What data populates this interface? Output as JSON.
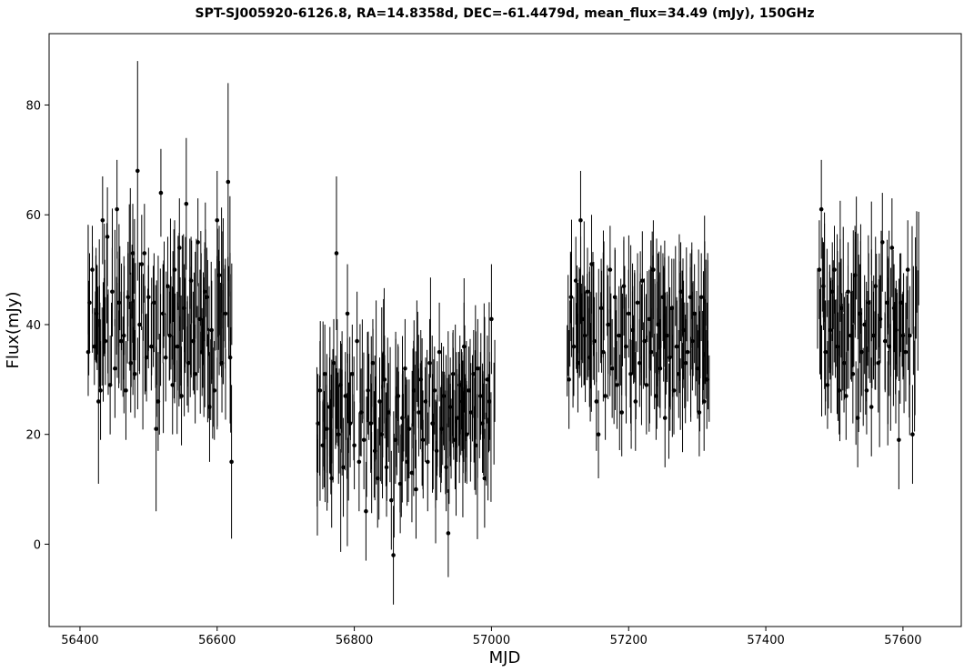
{
  "chart_data": {
    "type": "scatter",
    "title": "SPT-SJ005920-6126.8, RA=14.8358d, DEC=-61.4479d, mean_flux=34.49 (mJy), 150GHz",
    "xlabel": "MJD",
    "ylabel": "Flux(mJy)",
    "xlim": [
      56355,
      57685
    ],
    "ylim": [
      -15,
      93
    ],
    "xticks": [
      56400,
      56600,
      56800,
      57000,
      57200,
      57400,
      57600
    ],
    "yticks": [
      0,
      20,
      40,
      60,
      80
    ],
    "grid": false,
    "legend": "none",
    "errorbars": true,
    "point_color": "#000000",
    "season_ranges": [
      [
        56410,
        56625
      ],
      [
        56745,
        57005
      ],
      [
        57110,
        57320
      ],
      [
        57475,
        57625
      ]
    ],
    "season_means": [
      41,
      24,
      38,
      40
    ],
    "points": [
      {
        "x": 56412,
        "y": 35,
        "err": 8
      },
      {
        "x": 56414,
        "y": 44,
        "err": 9
      },
      {
        "x": 56418,
        "y": 50,
        "err": 8
      },
      {
        "x": 56421,
        "y": 36,
        "err": 7
      },
      {
        "x": 56424,
        "y": 42,
        "err": 9
      },
      {
        "x": 56427,
        "y": 26,
        "err": 15
      },
      {
        "x": 56430,
        "y": 28,
        "err": 9
      },
      {
        "x": 56433,
        "y": 59,
        "err": 8
      },
      {
        "x": 56437,
        "y": 37,
        "err": 8
      },
      {
        "x": 56440,
        "y": 56,
        "err": 9
      },
      {
        "x": 56444,
        "y": 29,
        "err": 9
      },
      {
        "x": 56447,
        "y": 46,
        "err": 8
      },
      {
        "x": 56451,
        "y": 32,
        "err": 9
      },
      {
        "x": 56454,
        "y": 61,
        "err": 9
      },
      {
        "x": 56457,
        "y": 44,
        "err": 8
      },
      {
        "x": 56460,
        "y": 37,
        "err": 9
      },
      {
        "x": 56464,
        "y": 38,
        "err": 8
      },
      {
        "x": 56467,
        "y": 28,
        "err": 9
      },
      {
        "x": 56470,
        "y": 45,
        "err": 8
      },
      {
        "x": 56474,
        "y": 33,
        "err": 9
      },
      {
        "x": 56477,
        "y": 53,
        "err": 9
      },
      {
        "x": 56480,
        "y": 31,
        "err": 8
      },
      {
        "x": 56484,
        "y": 68,
        "err": 20
      },
      {
        "x": 56487,
        "y": 40,
        "err": 9
      },
      {
        "x": 56490,
        "y": 51,
        "err": 9
      },
      {
        "x": 56494,
        "y": 53,
        "err": 9
      },
      {
        "x": 56497,
        "y": 34,
        "err": 8
      },
      {
        "x": 56500,
        "y": 45,
        "err": 9
      },
      {
        "x": 56504,
        "y": 36,
        "err": 8
      },
      {
        "x": 56508,
        "y": 44,
        "err": 9
      },
      {
        "x": 56511,
        "y": 21,
        "err": 15
      },
      {
        "x": 56514,
        "y": 26,
        "err": 9
      },
      {
        "x": 56518,
        "y": 64,
        "err": 8
      },
      {
        "x": 56521,
        "y": 42,
        "err": 9
      },
      {
        "x": 56525,
        "y": 34,
        "err": 8
      },
      {
        "x": 56528,
        "y": 47,
        "err": 9
      },
      {
        "x": 56531,
        "y": 38,
        "err": 8
      },
      {
        "x": 56535,
        "y": 29,
        "err": 9
      },
      {
        "x": 56538,
        "y": 50,
        "err": 9
      },
      {
        "x": 56542,
        "y": 36,
        "err": 8
      },
      {
        "x": 56545,
        "y": 54,
        "err": 9
      },
      {
        "x": 56548,
        "y": 27,
        "err": 9
      },
      {
        "x": 56552,
        "y": 43,
        "err": 8
      },
      {
        "x": 56555,
        "y": 62,
        "err": 12
      },
      {
        "x": 56558,
        "y": 33,
        "err": 9
      },
      {
        "x": 56562,
        "y": 48,
        "err": 8
      },
      {
        "x": 56565,
        "y": 37,
        "err": 9
      },
      {
        "x": 56568,
        "y": 31,
        "err": 9
      },
      {
        "x": 56572,
        "y": 55,
        "err": 8
      },
      {
        "x": 56575,
        "y": 41,
        "err": 9
      },
      {
        "x": 56578,
        "y": 35,
        "err": 8
      },
      {
        "x": 56582,
        "y": 46,
        "err": 9
      },
      {
        "x": 56585,
        "y": 45,
        "err": 9
      },
      {
        "x": 56589,
        "y": 25,
        "err": 10
      },
      {
        "x": 56592,
        "y": 39,
        "err": 9
      },
      {
        "x": 56596,
        "y": 28,
        "err": 9
      },
      {
        "x": 56600,
        "y": 59,
        "err": 9
      },
      {
        "x": 56603,
        "y": 49,
        "err": 9
      },
      {
        "x": 56607,
        "y": 33,
        "err": 9
      },
      {
        "x": 56612,
        "y": 42,
        "err": 10
      },
      {
        "x": 56616,
        "y": 66,
        "err": 18
      },
      {
        "x": 56619,
        "y": 34,
        "err": 12
      },
      {
        "x": 56621,
        "y": 15,
        "err": 14
      },
      {
        "x": 56747,
        "y": 22,
        "err": 9
      },
      {
        "x": 56750,
        "y": 28,
        "err": 9
      },
      {
        "x": 56754,
        "y": 18,
        "err": 8
      },
      {
        "x": 56757,
        "y": 31,
        "err": 9
      },
      {
        "x": 56760,
        "y": 21,
        "err": 8
      },
      {
        "x": 56764,
        "y": 25,
        "err": 9
      },
      {
        "x": 56767,
        "y": 12,
        "err": 9
      },
      {
        "x": 56770,
        "y": 33,
        "err": 8
      },
      {
        "x": 56774,
        "y": 53,
        "err": 14
      },
      {
        "x": 56777,
        "y": 20,
        "err": 9
      },
      {
        "x": 56780,
        "y": 29,
        "err": 8
      },
      {
        "x": 56784,
        "y": 14,
        "err": 9
      },
      {
        "x": 56787,
        "y": 27,
        "err": 8
      },
      {
        "x": 56790,
        "y": 42,
        "err": 9
      },
      {
        "x": 56794,
        "y": 22,
        "err": 8
      },
      {
        "x": 56797,
        "y": 31,
        "err": 9
      },
      {
        "x": 56800,
        "y": 18,
        "err": 8
      },
      {
        "x": 56804,
        "y": 37,
        "err": 9
      },
      {
        "x": 56807,
        "y": 15,
        "err": 9
      },
      {
        "x": 56810,
        "y": 24,
        "err": 8
      },
      {
        "x": 56814,
        "y": 19,
        "err": 9
      },
      {
        "x": 56817,
        "y": 6,
        "err": 9
      },
      {
        "x": 56820,
        "y": 28,
        "err": 8
      },
      {
        "x": 56824,
        "y": 22,
        "err": 9
      },
      {
        "x": 56827,
        "y": 33,
        "err": 8
      },
      {
        "x": 56830,
        "y": 17,
        "err": 9
      },
      {
        "x": 56834,
        "y": 12,
        "err": 9
      },
      {
        "x": 56837,
        "y": 26,
        "err": 8
      },
      {
        "x": 56840,
        "y": 20,
        "err": 9
      },
      {
        "x": 56844,
        "y": 30,
        "err": 8
      },
      {
        "x": 56847,
        "y": 14,
        "err": 9
      },
      {
        "x": 56850,
        "y": 24,
        "err": 9
      },
      {
        "x": 56854,
        "y": 8,
        "err": 9
      },
      {
        "x": 56857,
        "y": -2,
        "err": 9
      },
      {
        "x": 56860,
        "y": 19,
        "err": 8
      },
      {
        "x": 56864,
        "y": 27,
        "err": 9
      },
      {
        "x": 56867,
        "y": 11,
        "err": 9
      },
      {
        "x": 56870,
        "y": 23,
        "err": 8
      },
      {
        "x": 56874,
        "y": 32,
        "err": 9
      },
      {
        "x": 56877,
        "y": 15,
        "err": 8
      },
      {
        "x": 56880,
        "y": 21,
        "err": 9
      },
      {
        "x": 56884,
        "y": 13,
        "err": 9
      },
      {
        "x": 56887,
        "y": 28,
        "err": 8
      },
      {
        "x": 56890,
        "y": 10,
        "err": 9
      },
      {
        "x": 56894,
        "y": 24,
        "err": 8
      },
      {
        "x": 56897,
        "y": 30,
        "err": 9
      },
      {
        "x": 56900,
        "y": 19,
        "err": 9
      },
      {
        "x": 56904,
        "y": 26,
        "err": 8
      },
      {
        "x": 56907,
        "y": 15,
        "err": 9
      },
      {
        "x": 56910,
        "y": 33,
        "err": 8
      },
      {
        "x": 56914,
        "y": 22,
        "err": 9
      },
      {
        "x": 56917,
        "y": 28,
        "err": 8
      },
      {
        "x": 56920,
        "y": 17,
        "err": 9
      },
      {
        "x": 56924,
        "y": 35,
        "err": 9
      },
      {
        "x": 56927,
        "y": 21,
        "err": 8
      },
      {
        "x": 56930,
        "y": 27,
        "err": 9
      },
      {
        "x": 56934,
        "y": 14,
        "err": 8
      },
      {
        "x": 56937,
        "y": 2,
        "err": 8
      },
      {
        "x": 56940,
        "y": 25,
        "err": 9
      },
      {
        "x": 56944,
        "y": 31,
        "err": 8
      },
      {
        "x": 56947,
        "y": 19,
        "err": 9
      },
      {
        "x": 56950,
        "y": 23,
        "err": 8
      },
      {
        "x": 56954,
        "y": 29,
        "err": 9
      },
      {
        "x": 56957,
        "y": 26,
        "err": 9
      },
      {
        "x": 56960,
        "y": 36,
        "err": 8
      },
      {
        "x": 56964,
        "y": 20,
        "err": 9
      },
      {
        "x": 56967,
        "y": 28,
        "err": 8
      },
      {
        "x": 56970,
        "y": 24,
        "err": 9
      },
      {
        "x": 56974,
        "y": 31,
        "err": 8
      },
      {
        "x": 56977,
        "y": 18,
        "err": 9
      },
      {
        "x": 56980,
        "y": 32,
        "err": 9
      },
      {
        "x": 56984,
        "y": 27,
        "err": 8
      },
      {
        "x": 56987,
        "y": 22,
        "err": 9
      },
      {
        "x": 56990,
        "y": 12,
        "err": 9
      },
      {
        "x": 56994,
        "y": 30,
        "err": 8
      },
      {
        "x": 56997,
        "y": 26,
        "err": 9
      },
      {
        "x": 57000,
        "y": 41,
        "err": 10
      },
      {
        "x": 57113,
        "y": 30,
        "err": 9
      },
      {
        "x": 57116,
        "y": 45,
        "err": 8
      },
      {
        "x": 57120,
        "y": 36,
        "err": 9
      },
      {
        "x": 57123,
        "y": 48,
        "err": 8
      },
      {
        "x": 57126,
        "y": 33,
        "err": 9
      },
      {
        "x": 57130,
        "y": 59,
        "err": 9
      },
      {
        "x": 57133,
        "y": 41,
        "err": 8
      },
      {
        "x": 57136,
        "y": 38,
        "err": 9
      },
      {
        "x": 57140,
        "y": 46,
        "err": 8
      },
      {
        "x": 57143,
        "y": 34,
        "err": 9
      },
      {
        "x": 57146,
        "y": 51,
        "err": 9
      },
      {
        "x": 57150,
        "y": 37,
        "err": 8
      },
      {
        "x": 57153,
        "y": 26,
        "err": 9
      },
      {
        "x": 57156,
        "y": 20,
        "err": 8
      },
      {
        "x": 57160,
        "y": 43,
        "err": 9
      },
      {
        "x": 57163,
        "y": 35,
        "err": 9
      },
      {
        "x": 57166,
        "y": 27,
        "err": 8
      },
      {
        "x": 57170,
        "y": 40,
        "err": 9
      },
      {
        "x": 57173,
        "y": 50,
        "err": 8
      },
      {
        "x": 57176,
        "y": 32,
        "err": 9
      },
      {
        "x": 57180,
        "y": 45,
        "err": 9
      },
      {
        "x": 57183,
        "y": 29,
        "err": 8
      },
      {
        "x": 57186,
        "y": 38,
        "err": 9
      },
      {
        "x": 57190,
        "y": 24,
        "err": 8
      },
      {
        "x": 57193,
        "y": 47,
        "err": 9
      },
      {
        "x": 57196,
        "y": 36,
        "err": 9
      },
      {
        "x": 57200,
        "y": 42,
        "err": 8
      },
      {
        "x": 57203,
        "y": 31,
        "err": 9
      },
      {
        "x": 57206,
        "y": 39,
        "err": 8
      },
      {
        "x": 57210,
        "y": 26,
        "err": 9
      },
      {
        "x": 57213,
        "y": 44,
        "err": 9
      },
      {
        "x": 57216,
        "y": 33,
        "err": 8
      },
      {
        "x": 57220,
        "y": 48,
        "err": 9
      },
      {
        "x": 57223,
        "y": 37,
        "err": 8
      },
      {
        "x": 57226,
        "y": 29,
        "err": 9
      },
      {
        "x": 57230,
        "y": 41,
        "err": 9
      },
      {
        "x": 57233,
        "y": 35,
        "err": 8
      },
      {
        "x": 57236,
        "y": 50,
        "err": 9
      },
      {
        "x": 57240,
        "y": 27,
        "err": 8
      },
      {
        "x": 57243,
        "y": 40,
        "err": 9
      },
      {
        "x": 57246,
        "y": 32,
        "err": 9
      },
      {
        "x": 57250,
        "y": 45,
        "err": 8
      },
      {
        "x": 57253,
        "y": 23,
        "err": 9
      },
      {
        "x": 57256,
        "y": 38,
        "err": 8
      },
      {
        "x": 57260,
        "y": 34,
        "err": 9
      },
      {
        "x": 57263,
        "y": 43,
        "err": 9
      },
      {
        "x": 57266,
        "y": 28,
        "err": 8
      },
      {
        "x": 57270,
        "y": 36,
        "err": 9
      },
      {
        "x": 57273,
        "y": 31,
        "err": 8
      },
      {
        "x": 57276,
        "y": 46,
        "err": 9
      },
      {
        "x": 57280,
        "y": 39,
        "err": 9
      },
      {
        "x": 57283,
        "y": 33,
        "err": 8
      },
      {
        "x": 57286,
        "y": 35,
        "err": 9
      },
      {
        "x": 57290,
        "y": 45,
        "err": 8
      },
      {
        "x": 57293,
        "y": 37,
        "err": 9
      },
      {
        "x": 57296,
        "y": 42,
        "err": 9
      },
      {
        "x": 57300,
        "y": 32,
        "err": 8
      },
      {
        "x": 57303,
        "y": 24,
        "err": 8
      },
      {
        "x": 57306,
        "y": 45,
        "err": 8
      },
      {
        "x": 57310,
        "y": 26,
        "err": 9
      },
      {
        "x": 57314,
        "y": 30,
        "err": 9
      },
      {
        "x": 57478,
        "y": 50,
        "err": 9
      },
      {
        "x": 57481,
        "y": 61,
        "err": 9
      },
      {
        "x": 57484,
        "y": 47,
        "err": 8
      },
      {
        "x": 57487,
        "y": 35,
        "err": 9
      },
      {
        "x": 57490,
        "y": 29,
        "err": 8
      },
      {
        "x": 57494,
        "y": 39,
        "err": 9
      },
      {
        "x": 57497,
        "y": 46,
        "err": 9
      },
      {
        "x": 57500,
        "y": 50,
        "err": 8
      },
      {
        "x": 57504,
        "y": 36,
        "err": 9
      },
      {
        "x": 57507,
        "y": 28,
        "err": 8
      },
      {
        "x": 57510,
        "y": 43,
        "err": 9
      },
      {
        "x": 57514,
        "y": 33,
        "err": 9
      },
      {
        "x": 57517,
        "y": 27,
        "err": 8
      },
      {
        "x": 57520,
        "y": 46,
        "err": 9
      },
      {
        "x": 57524,
        "y": 38,
        "err": 8
      },
      {
        "x": 57527,
        "y": 31,
        "err": 9
      },
      {
        "x": 57530,
        "y": 49,
        "err": 9
      },
      {
        "x": 57534,
        "y": 23,
        "err": 9
      },
      {
        "x": 57537,
        "y": 42,
        "err": 9
      },
      {
        "x": 57540,
        "y": 35,
        "err": 8
      },
      {
        "x": 57544,
        "y": 40,
        "err": 9
      },
      {
        "x": 57547,
        "y": 28,
        "err": 8
      },
      {
        "x": 57550,
        "y": 44,
        "err": 9
      },
      {
        "x": 57554,
        "y": 25,
        "err": 9
      },
      {
        "x": 57557,
        "y": 38,
        "err": 8
      },
      {
        "x": 57560,
        "y": 47,
        "err": 9
      },
      {
        "x": 57564,
        "y": 33,
        "err": 9
      },
      {
        "x": 57567,
        "y": 41,
        "err": 8
      },
      {
        "x": 57570,
        "y": 55,
        "err": 9
      },
      {
        "x": 57574,
        "y": 37,
        "err": 9
      },
      {
        "x": 57577,
        "y": 44,
        "err": 8
      },
      {
        "x": 57580,
        "y": 36,
        "err": 9
      },
      {
        "x": 57584,
        "y": 54,
        "err": 9
      },
      {
        "x": 57587,
        "y": 43,
        "err": 8
      },
      {
        "x": 57590,
        "y": 39,
        "err": 9
      },
      {
        "x": 57594,
        "y": 19,
        "err": 9
      },
      {
        "x": 57597,
        "y": 44,
        "err": 9
      },
      {
        "x": 57600,
        "y": 38,
        "err": 8
      },
      {
        "x": 57604,
        "y": 35,
        "err": 9
      },
      {
        "x": 57607,
        "y": 50,
        "err": 9
      },
      {
        "x": 57610,
        "y": 38,
        "err": 9
      },
      {
        "x": 57614,
        "y": 20,
        "err": 9
      }
    ]
  }
}
